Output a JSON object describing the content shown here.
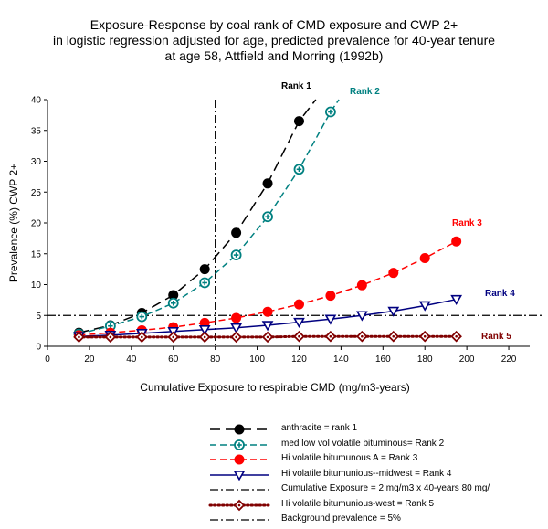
{
  "chart_data": {
    "type": "line",
    "title_lines": [
      "Exposure-Response by coal rank of CMD exposure and CWP 2+",
      "in logistic regression adjusted for age, predicted prevalence for 40-year tenure",
      "at age 58, Attfield and Morring (1992b)"
    ],
    "xlabel": "Cumulative Exposure to respirable CMD (mg/m3-years)",
    "ylabel": "Prevalence (%) CWP 2+",
    "xlim": [
      0,
      230
    ],
    "ylim": [
      0,
      40
    ],
    "xticks": [
      0,
      20,
      40,
      60,
      80,
      100,
      120,
      140,
      160,
      180,
      200,
      220
    ],
    "yticks": [
      0,
      5,
      10,
      15,
      20,
      25,
      30,
      35,
      40
    ],
    "grid": false,
    "legend_position": "bottom",
    "series": [
      {
        "name": "anthracite = rank 1",
        "label": "Rank 1",
        "color": "#000000",
        "marker": "filled-circle",
        "line": "long-dash",
        "x": [
          15,
          30,
          45,
          60,
          75,
          90,
          105,
          120
        ],
        "y": [
          2.2,
          3.4,
          5.4,
          8.3,
          12.5,
          18.4,
          26.4,
          36.5
        ],
        "curve_extends_to": [
          128,
          40
        ]
      },
      {
        "name": "med low vol volatile bituminous= Rank 2",
        "label": "Rank 2",
        "color": "#008080",
        "marker": "open-circle-plus",
        "line": "dash",
        "x": [
          15,
          30,
          45,
          60,
          75,
          90,
          105,
          120,
          135
        ],
        "y": [
          2.0,
          3.3,
          4.8,
          7.0,
          10.3,
          14.8,
          21.0,
          28.7,
          38.0
        ],
        "curve_extends_to": [
          139,
          40
        ]
      },
      {
        "name": "Hi volatile bitumunous A = Rank 3",
        "label": "Rank 3",
        "color": "#ff0000",
        "marker": "filled-circle",
        "line": "dash",
        "x": [
          15,
          30,
          45,
          60,
          75,
          90,
          105,
          120,
          135,
          150,
          165,
          180,
          195
        ],
        "y": [
          1.8,
          2.2,
          2.6,
          3.1,
          3.8,
          4.6,
          5.6,
          6.8,
          8.2,
          9.9,
          11.9,
          14.3,
          17.0
        ]
      },
      {
        "name": "Hi volatile bitumunious--midwest = Rank 4",
        "label": "Rank 4",
        "color": "#000080",
        "marker": "open-triangle-down",
        "line": "solid",
        "x": [
          15,
          30,
          45,
          60,
          75,
          90,
          105,
          120,
          135,
          150,
          165,
          180,
          195
        ],
        "y": [
          1.6,
          1.8,
          2.1,
          2.4,
          2.7,
          3.0,
          3.4,
          3.9,
          4.4,
          5.0,
          5.7,
          6.6,
          7.6
        ]
      },
      {
        "name": "Hi volatile bitumunious-west = Rank 5",
        "label": "Rank 5",
        "color": "#800000",
        "marker": "open-diamond-dot",
        "line": "dotted",
        "x": [
          15,
          30,
          45,
          60,
          75,
          90,
          105,
          120,
          135,
          150,
          165,
          180,
          195
        ],
        "y": [
          1.5,
          1.5,
          1.5,
          1.5,
          1.5,
          1.5,
          1.5,
          1.6,
          1.6,
          1.6,
          1.6,
          1.6,
          1.6
        ]
      }
    ],
    "reference_lines": [
      {
        "name": "Cumulative Exposure = 2 mg/m3 x 40-years 80 mg/",
        "orientation": "vertical",
        "value": 80,
        "color": "#000000",
        "line": "dash-dot"
      },
      {
        "name": "Background prevalence = 5%",
        "orientation": "horizontal",
        "value": 5,
        "color": "#000000",
        "line": "dash-dot"
      }
    ],
    "legend_order": [
      "anthracite = rank 1",
      "med low vol volatile bituminous= Rank 2",
      "Hi volatile bitumunous A = Rank 3",
      "Hi volatile bitumunious--midwest = Rank 4",
      "Cumulative Exposure = 2 mg/m3 x 40-years 80 mg/",
      "Hi volatile bitumunious-west = Rank 5",
      "Background prevalence = 5%"
    ]
  }
}
